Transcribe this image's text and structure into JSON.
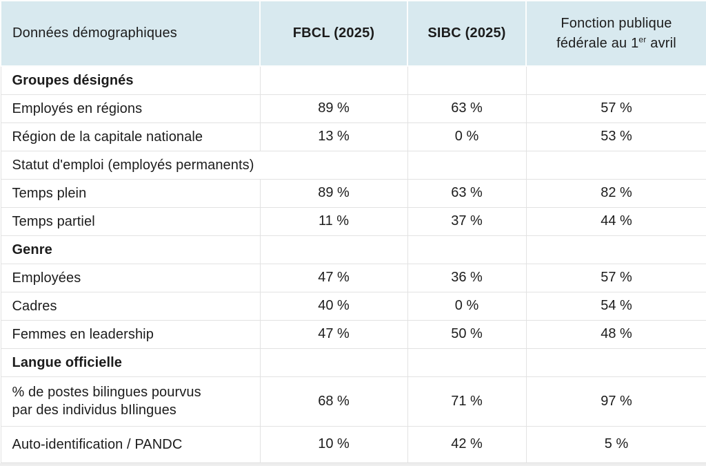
{
  "page": {
    "header_bg": "#d8e9ef",
    "text_color": "#1c1c1c",
    "border_color": "#e2e2e2",
    "strip_color": "#ededed"
  },
  "table": {
    "header": {
      "col1": "Données démographiques",
      "col2": "FBCL (2025)",
      "col3": "SIBC (2025)",
      "col4_line1": "Fonction publique",
      "col4_line2_pre": "fédérale au 1",
      "col4_sup": "er",
      "col4_line2_post": " avril"
    },
    "rows": [
      {
        "type": "section-bold",
        "span": 1,
        "label": "Groupes désignés"
      },
      {
        "type": "data",
        "label": "Employés en régions",
        "fbcl": "89 %",
        "sibc": "63 %",
        "fpf": "57 %"
      },
      {
        "type": "data",
        "label": "Région de la capitale nationale",
        "fbcl": "13 %",
        "sibc": "0 %",
        "fpf": "53 %"
      },
      {
        "type": "section",
        "span": 2,
        "label": "Statut d'emploi (employés permanents)"
      },
      {
        "type": "data",
        "label": "Temps plein",
        "fbcl": "89 %",
        "sibc": "63 %",
        "fpf": "82 %"
      },
      {
        "type": "data",
        "label": "Temps partiel",
        "fbcl": "11 %",
        "sibc": "37 %",
        "fpf": "44 %"
      },
      {
        "type": "section-bold",
        "span": 1,
        "label": "Genre"
      },
      {
        "type": "data",
        "label": "Employées",
        "fbcl": "47 %",
        "sibc": "36 %",
        "fpf": "57 %"
      },
      {
        "type": "data",
        "label": "Cadres",
        "fbcl": "40 %",
        "sibc": "0 %",
        "fpf": "54 %"
      },
      {
        "type": "data",
        "label": "Femmes en leadership",
        "fbcl": "47 %",
        "sibc": "50 %",
        "fpf": "48 %"
      },
      {
        "type": "section-bold",
        "span": 1,
        "label": "Langue officielle"
      },
      {
        "type": "data",
        "label": "% de postes bilingues pourvus",
        "label2": "par des individus bIlingues",
        "fbcl": "68 %",
        "sibc": "71 %",
        "fpf": "97 %"
      },
      {
        "type": "data",
        "label": "Auto-identification / PANDC",
        "fbcl": "10 %",
        "sibc": "42 %",
        "fpf": "5 %"
      }
    ]
  },
  "chart_data": {
    "type": "table",
    "columns": [
      "Données démographiques",
      "FBCL (2025)",
      "SIBC (2025)",
      "Fonction publique fédérale au 1er avril"
    ],
    "rows": [
      [
        "Groupes désignés",
        "",
        "",
        ""
      ],
      [
        "Employés en régions",
        "89 %",
        "63 %",
        "57 %"
      ],
      [
        "Région de la capitale nationale",
        "13 %",
        "0 %",
        "53 %"
      ],
      [
        "Statut d'emploi (employés permanents)",
        "",
        "",
        ""
      ],
      [
        "Temps plein",
        "89 %",
        "63 %",
        "82 %"
      ],
      [
        "Temps partiel",
        "11 %",
        "37 %",
        "44 %"
      ],
      [
        "Genre",
        "",
        "",
        ""
      ],
      [
        "Employées",
        "47 %",
        "36 %",
        "57 %"
      ],
      [
        "Cadres",
        "40 %",
        "0 %",
        "54 %"
      ],
      [
        "Femmes en leadership",
        "47 %",
        "50 %",
        "48 %"
      ],
      [
        "Langue officielle",
        "",
        "",
        ""
      ],
      [
        "% de postes bilingues pourvus par des individus bIlingues",
        "68 %",
        "71 %",
        "97 %"
      ],
      [
        "Auto-identification / PANDC",
        "10 %",
        "42 %",
        "5 %"
      ]
    ]
  }
}
